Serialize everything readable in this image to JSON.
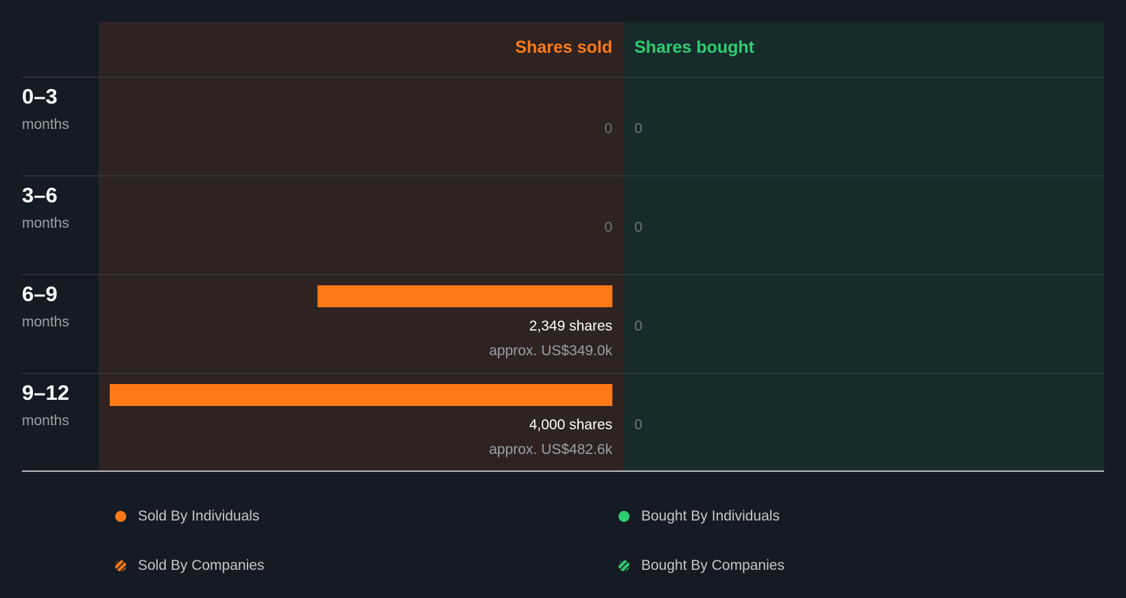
{
  "chart_data": {
    "type": "bar",
    "headers": {
      "sold": "Shares sold",
      "bought": "Shares bought"
    },
    "max_shares": 4000,
    "periods": [
      {
        "range": "0–3",
        "unit": "months",
        "sold_shares": 0,
        "sold_zero": "0",
        "sold_label": "",
        "sold_value": "",
        "bought_shares": 0,
        "bought_zero": "0"
      },
      {
        "range": "3–6",
        "unit": "months",
        "sold_shares": 0,
        "sold_zero": "0",
        "sold_label": "",
        "sold_value": "",
        "bought_shares": 0,
        "bought_zero": "0"
      },
      {
        "range": "6–9",
        "unit": "months",
        "sold_shares": 2349,
        "sold_zero": "",
        "sold_label": "2,349 shares",
        "sold_value": "approx. US$349.0k",
        "bought_shares": 0,
        "bought_zero": "0"
      },
      {
        "range": "9–12",
        "unit": "months",
        "sold_shares": 4000,
        "sold_zero": "",
        "sold_label": "4,000 shares",
        "sold_value": "approx. US$482.6k",
        "bought_shares": 0,
        "bought_zero": "0"
      }
    ],
    "legend": [
      {
        "label": "Sold By Individuals",
        "icon": "dot",
        "color": "#ff7a17"
      },
      {
        "label": "Bought By Individuals",
        "icon": "dot",
        "color": "#2ecc71"
      },
      {
        "label": "Sold By Companies",
        "icon": "striped-dot",
        "color": "#ff7a17"
      },
      {
        "label": "Bought By Companies",
        "icon": "striped-dot",
        "color": "#2ecc71"
      }
    ],
    "colors": {
      "sold": "#ff7a17",
      "bought": "#2ecc71",
      "background": "#151b24"
    }
  }
}
